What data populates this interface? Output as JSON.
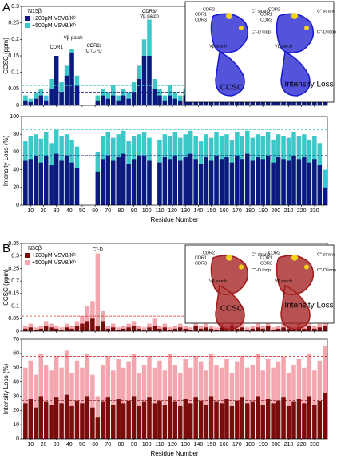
{
  "panel_labels": [
    "A",
    "B"
  ],
  "insets": [
    {
      "color": "#1a1ad0",
      "left_title": "CCSC",
      "right_title": "Intensity Loss",
      "labels": [
        "CDR2",
        "CDR1",
        "CDR3",
        "C'' strand",
        "C''-D loop",
        "Vβ patch"
      ]
    },
    {
      "color": "#a01818",
      "left_title": "CCSC",
      "right_title": "Intensity Loss",
      "labels": [
        "CDR2",
        "CDR1",
        "CDR3",
        "C'' strand",
        "C''-D loop",
        "Vβ patch"
      ]
    }
  ],
  "chart_data": [
    {
      "type": "bar",
      "ylabel": "CCSC (ppm)",
      "legend_title": "N15β",
      "annotations": [
        "CDR1",
        "Vβ patch",
        "CDR2/",
        "C''/C'-D",
        "CDR3/",
        "Vβ patch"
      ],
      "x": [
        6,
        10,
        14,
        18,
        22,
        26,
        30,
        34,
        38,
        42,
        46,
        50,
        54,
        58,
        62,
        66,
        70,
        74,
        78,
        82,
        86,
        90,
        94,
        98,
        102,
        106,
        110,
        114,
        118,
        122,
        126,
        130,
        134,
        138,
        142,
        146,
        150,
        154,
        158,
        162,
        166,
        170,
        174,
        178,
        182,
        186,
        190,
        194,
        198,
        202,
        206,
        210,
        214,
        218,
        222,
        226,
        230,
        234,
        238
      ],
      "series": [
        {
          "name": "+500μM VSV8/Kᵇ",
          "color": "#3cc8c8",
          "values": [
            0.03,
            0.02,
            0.04,
            0.05,
            0.03,
            0.08,
            0.15,
            0.07,
            0.12,
            0.17,
            0.09,
            null,
            null,
            null,
            0.03,
            0.05,
            0.04,
            0.06,
            0.03,
            0.05,
            0.04,
            0.07,
            0.12,
            0.2,
            0.26,
            0.08,
            0.05,
            0.03,
            0.06,
            0.04,
            0.03,
            0.05,
            0.04,
            0.03,
            0.02,
            0.04,
            0.03,
            0.05,
            0.03,
            0.02,
            0.04,
            0.03,
            0.05,
            0.03,
            0.02,
            0.04,
            0.06,
            0.03,
            0.04,
            0.05,
            0.03,
            0.04,
            0.02,
            0.05,
            0.03,
            0.04,
            0.03,
            0.02,
            0.03
          ]
        },
        {
          "name": "+200μM VSV8/Kᵇ",
          "color": "#0c1a80",
          "values": [
            0.015,
            0.01,
            0.02,
            0.03,
            0.015,
            0.05,
            0.15,
            0.04,
            0.09,
            0.16,
            0.06,
            null,
            null,
            null,
            0.015,
            0.03,
            0.02,
            0.03,
            0.015,
            0.03,
            0.02,
            0.04,
            0.08,
            0.15,
            0.15,
            0.05,
            0.03,
            0.015,
            0.03,
            0.02,
            0.015,
            0.03,
            0.02,
            0.015,
            0.01,
            0.02,
            0.015,
            0.03,
            0.015,
            0.01,
            0.02,
            0.015,
            0.03,
            0.015,
            0.01,
            0.02,
            0.03,
            0.015,
            0.02,
            0.03,
            0.015,
            0.02,
            0.01,
            0.03,
            0.015,
            0.02,
            0.015,
            0.01,
            0.015
          ]
        }
      ],
      "reference_lines": [
        {
          "value": 0.06,
          "color": "#3cc8c8"
        },
        {
          "value": 0.04,
          "color": "#0c1a80"
        }
      ],
      "xlim": [
        3,
        240
      ],
      "xticks": [
        10,
        20,
        30,
        40,
        50,
        60,
        70,
        80,
        90,
        100,
        110,
        120,
        130,
        140,
        150,
        160,
        170,
        180,
        190,
        200,
        210,
        220,
        230
      ],
      "ylim": [
        0,
        0.3
      ],
      "yticks": [
        0,
        0.05,
        0.1,
        0.15,
        0.2,
        0.25,
        0.3
      ]
    },
    {
      "type": "bar",
      "ylabel": "Intensity Loss (%)",
      "xlabel": "Residue Number",
      "x": [
        6,
        10,
        14,
        18,
        22,
        26,
        30,
        34,
        38,
        42,
        46,
        50,
        54,
        58,
        62,
        66,
        70,
        74,
        78,
        82,
        86,
        90,
        94,
        98,
        102,
        106,
        110,
        114,
        118,
        122,
        126,
        130,
        134,
        138,
        142,
        146,
        150,
        154,
        158,
        162,
        166,
        170,
        174,
        178,
        182,
        186,
        190,
        194,
        198,
        202,
        206,
        210,
        214,
        218,
        222,
        226,
        230,
        234,
        238
      ],
      "series": [
        {
          "name": "+500μM VSV8/Kᵇ",
          "color": "#3cc8c8",
          "values": [
            72,
            78,
            80,
            75,
            82,
            70,
            85,
            78,
            80,
            74,
            66,
            null,
            null,
            null,
            60,
            78,
            82,
            76,
            80,
            84,
            72,
            78,
            80,
            82,
            76,
            null,
            74,
            80,
            78,
            82,
            76,
            80,
            84,
            78,
            72,
            80,
            76,
            82,
            78,
            80,
            74,
            82,
            78,
            84,
            76,
            80,
            78,
            82,
            74,
            80,
            78,
            76,
            82,
            78,
            80,
            74,
            78,
            70,
            40
          ]
        },
        {
          "name": "+200μM VSV8/Kᵇ",
          "color": "#0c1a80",
          "values": [
            50,
            52,
            55,
            48,
            56,
            45,
            58,
            50,
            55,
            48,
            42,
            null,
            null,
            null,
            38,
            52,
            56,
            50,
            54,
            58,
            46,
            52,
            55,
            56,
            50,
            null,
            48,
            54,
            52,
            56,
            50,
            54,
            58,
            52,
            46,
            54,
            50,
            56,
            52,
            54,
            48,
            56,
            52,
            58,
            50,
            54,
            52,
            56,
            48,
            54,
            52,
            50,
            56,
            52,
            54,
            48,
            52,
            45,
            20
          ]
        }
      ],
      "reference_lines": [
        {
          "value": 85,
          "color": "#3cc8c8"
        },
        {
          "value": 56,
          "color": "#0c1a80"
        }
      ],
      "xlim": [
        3,
        240
      ],
      "xticks": [
        10,
        20,
        30,
        40,
        50,
        60,
        70,
        80,
        90,
        100,
        110,
        120,
        130,
        140,
        150,
        160,
        170,
        180,
        190,
        200,
        210,
        220,
        230
      ],
      "ylim": [
        0,
        100
      ],
      "yticks": [
        0,
        20,
        40,
        60,
        80,
        100
      ]
    },
    {
      "type": "bar",
      "ylabel": "CCSC (ppm)",
      "legend_title": "N30β",
      "annotations": [
        "C''-D"
      ],
      "x": [
        6,
        10,
        14,
        18,
        22,
        26,
        30,
        34,
        38,
        42,
        46,
        50,
        54,
        58,
        62,
        66,
        70,
        74,
        78,
        82,
        86,
        90,
        94,
        98,
        102,
        106,
        110,
        114,
        118,
        122,
        126,
        130,
        134,
        138,
        142,
        146,
        150,
        154,
        158,
        162,
        166,
        170,
        174,
        178,
        182,
        186,
        190,
        194,
        198,
        202,
        206,
        210,
        214,
        218,
        222,
        226,
        230,
        234,
        238
      ],
      "series": [
        {
          "name": "+500μM VSV8/Kᵇ",
          "color": "#f4a6ae",
          "values": [
            0.02,
            0.03,
            0.015,
            0.02,
            0.04,
            0.03,
            0.02,
            0.015,
            0.03,
            0.02,
            0.04,
            0.06,
            0.1,
            0.12,
            0.31,
            0.08,
            0.02,
            0.03,
            0.015,
            0.02,
            0.03,
            0.04,
            0.02,
            0.015,
            0.03,
            0.05,
            0.02,
            0.03,
            0.015,
            0.02,
            0.03,
            0.02,
            0.015,
            0.04,
            0.02,
            0.03,
            0.02,
            0.015,
            0.03,
            0.02,
            0.04,
            0.02,
            0.03,
            0.015,
            0.02,
            0.03,
            0.02,
            0.04,
            0.015,
            0.02,
            0.03,
            0.02,
            0.015,
            0.03,
            0.02,
            0.04,
            0.02,
            0.03,
            0.06
          ]
        },
        {
          "name": "+200μM VSV8/Kᵇ",
          "color": "#7a0c0c",
          "values": [
            0.01,
            0.015,
            0.005,
            0.01,
            0.02,
            0.015,
            0.01,
            0.005,
            0.015,
            0.01,
            0.02,
            0.03,
            0.04,
            0.05,
            0.02,
            0.04,
            0.01,
            0.015,
            0.005,
            0.01,
            0.015,
            0.02,
            0.01,
            0.005,
            0.015,
            0.02,
            0.01,
            0.015,
            0.005,
            0.01,
            0.015,
            0.01,
            0.005,
            0.02,
            0.01,
            0.015,
            0.01,
            0.005,
            0.015,
            0.01,
            0.02,
            0.01,
            0.015,
            0.005,
            0.01,
            0.015,
            0.01,
            0.02,
            0.005,
            0.01,
            0.015,
            0.01,
            0.005,
            0.015,
            0.01,
            0.02,
            0.01,
            0.015,
            0.02
          ]
        }
      ],
      "reference_lines": [
        {
          "value": 0.06,
          "color": "#e03030"
        },
        {
          "value": 0.02,
          "color": "#e03030"
        }
      ],
      "xlim": [
        3,
        240
      ],
      "xticks": [
        10,
        20,
        30,
        40,
        50,
        60,
        70,
        80,
        90,
        100,
        110,
        120,
        130,
        140,
        150,
        160,
        170,
        180,
        190,
        200,
        210,
        220,
        230
      ],
      "ylim": [
        0,
        0.35
      ],
      "yticks": [
        0,
        0.05,
        0.1,
        0.15,
        0.2,
        0.25,
        0.3,
        0.35
      ]
    },
    {
      "type": "bar",
      "ylabel": "Intensity Loss (%)",
      "xlabel": "Residue Number",
      "x": [
        6,
        10,
        14,
        18,
        22,
        26,
        30,
        34,
        38,
        42,
        46,
        50,
        54,
        58,
        62,
        66,
        70,
        74,
        78,
        82,
        86,
        90,
        94,
        98,
        102,
        106,
        110,
        114,
        118,
        122,
        126,
        130,
        134,
        138,
        142,
        146,
        150,
        154,
        158,
        162,
        166,
        170,
        174,
        178,
        182,
        186,
        190,
        194,
        198,
        202,
        206,
        210,
        214,
        218,
        222,
        226,
        230,
        234,
        238
      ],
      "series": [
        {
          "name": "+500μM VSV8/Kᵇ",
          "color": "#f4a6ae",
          "values": [
            50,
            55,
            45,
            60,
            52,
            48,
            58,
            50,
            62,
            46,
            55,
            50,
            60,
            45,
            30,
            52,
            58,
            48,
            56,
            50,
            54,
            60,
            46,
            52,
            58,
            50,
            55,
            48,
            60,
            52,
            46,
            56,
            50,
            58,
            54,
            48,
            60,
            52,
            50,
            56,
            46,
            54,
            58,
            50,
            52,
            60,
            48,
            56,
            50,
            54,
            58,
            46,
            52,
            56,
            50,
            60,
            48,
            55,
            65
          ]
        },
        {
          "name": "+200μM VSV8/Kᵇ",
          "color": "#7a0c0c",
          "values": [
            25,
            28,
            22,
            30,
            26,
            24,
            29,
            25,
            31,
            23,
            27,
            25,
            30,
            22,
            15,
            26,
            29,
            24,
            28,
            25,
            27,
            30,
            23,
            26,
            29,
            25,
            27,
            24,
            30,
            26,
            23,
            28,
            25,
            29,
            27,
            24,
            30,
            26,
            25,
            28,
            23,
            27,
            29,
            25,
            26,
            30,
            24,
            28,
            25,
            27,
            29,
            23,
            26,
            28,
            25,
            30,
            24,
            27,
            32
          ]
        }
      ],
      "reference_lines": [
        {
          "value": 58,
          "color": "#e03030"
        },
        {
          "value": 27,
          "color": "#7a0c0c"
        }
      ],
      "xlim": [
        3,
        240
      ],
      "xticks": [
        10,
        20,
        30,
        40,
        50,
        60,
        70,
        80,
        90,
        100,
        110,
        120,
        130,
        140,
        150,
        160,
        170,
        180,
        190,
        200,
        210,
        220,
        230
      ],
      "ylim": [
        0,
        70
      ],
      "yticks": [
        0,
        10,
        20,
        30,
        40,
        50,
        60,
        70
      ]
    }
  ]
}
